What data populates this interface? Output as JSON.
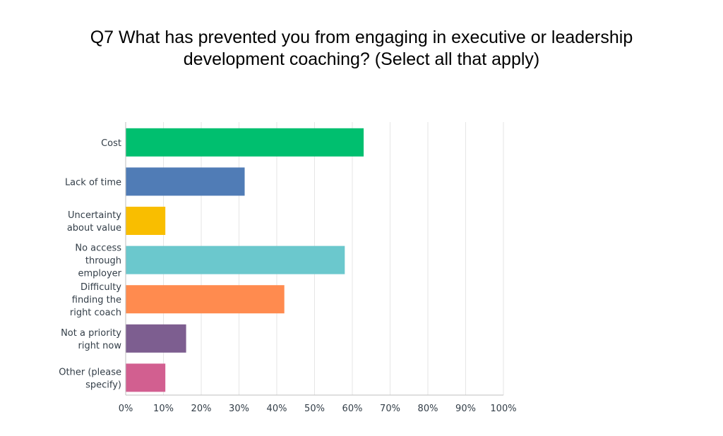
{
  "chart_data": {
    "type": "bar",
    "orientation": "horizontal",
    "title": "Q7 What has prevented you from engaging in executive or leadership development coaching? (Select all that apply)",
    "categories": [
      "Cost",
      "Lack of time",
      "Uncertainty about value",
      "No access through employer",
      "Difficulty finding the right coach",
      "Not a priority right now",
      "Other (please specify)"
    ],
    "category_lines": [
      [
        "Cost"
      ],
      [
        "Lack of time"
      ],
      [
        "Uncertainty",
        "about value"
      ],
      [
        "No access",
        "through",
        "employer"
      ],
      [
        "Difficulty",
        "finding the",
        "right coach"
      ],
      [
        "Not a priority",
        "right now"
      ],
      [
        "Other (please",
        "specify)"
      ]
    ],
    "values": [
      63,
      31.5,
      10.5,
      58,
      42,
      16,
      10.5
    ],
    "colors": [
      "#00bf6f",
      "#507cb6",
      "#f9be00",
      "#6bc8cd",
      "#ff8b4f",
      "#7d5e90",
      "#d25f90"
    ],
    "xlim": [
      0,
      100
    ],
    "ticks": [
      0,
      10,
      20,
      30,
      40,
      50,
      60,
      70,
      80,
      90,
      100
    ],
    "tick_labels": [
      "0%",
      "10%",
      "20%",
      "30%",
      "40%",
      "50%",
      "60%",
      "70%",
      "80%",
      "90%",
      "100%"
    ],
    "grid": true,
    "xlabel": "",
    "ylabel": ""
  }
}
